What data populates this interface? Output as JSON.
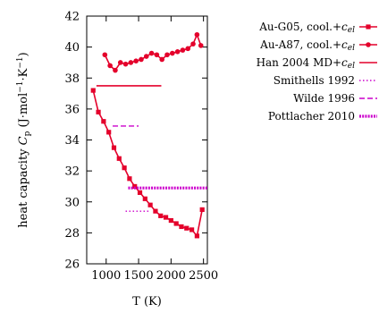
{
  "chart_data": {
    "type": "line",
    "xlabel": "T (K)",
    "ylabel": "heat capacity Cp (J·mol⁻¹·K⁻¹)",
    "ylabel_parts": {
      "prefix": "heat capacity ",
      "symbol": "C",
      "subscript": "p",
      "units_open": " (J·mol",
      "exp1": "−1",
      "units_mid": "·K",
      "exp2": "−1",
      "units_close": ")"
    },
    "xlim": [
      700,
      2560
    ],
    "ylim": [
      26,
      42
    ],
    "xticks": [
      1000,
      1500,
      2000,
      2500
    ],
    "xtick_labels": [
      "1000",
      "1500",
      "2000",
      "2500"
    ],
    "yticks": [
      26,
      28,
      30,
      32,
      34,
      36,
      38,
      40,
      42
    ],
    "ytick_labels": [
      "26",
      "28",
      "30",
      "32",
      "34",
      "36",
      "38",
      "40",
      "42"
    ],
    "legend_position": "outside-right",
    "series": [
      {
        "name": "Au-G05, cool.+c_el",
        "legend_label": {
          "text": "Au-G05, cool.+",
          "sym": "c",
          "sub": "el"
        },
        "color": "#e4002b",
        "style": "line-square",
        "x": [
          800,
          880,
          960,
          1040,
          1120,
          1200,
          1280,
          1360,
          1440,
          1520,
          1600,
          1680,
          1760,
          1840,
          1920,
          2000,
          2080,
          2160,
          2240,
          2320,
          2400,
          2480
        ],
        "y": [
          37.2,
          35.8,
          35.2,
          34.5,
          33.5,
          32.8,
          32.2,
          31.5,
          31.0,
          30.6,
          30.2,
          29.8,
          29.4,
          29.1,
          29.0,
          28.8,
          28.6,
          28.4,
          28.3,
          28.2,
          27.8,
          29.5
        ]
      },
      {
        "name": "Au-A87, cool.+c_el",
        "legend_label": {
          "text": "Au-A87, cool.+",
          "sym": "c",
          "sub": "el"
        },
        "color": "#e4002b",
        "style": "line-circle",
        "x": [
          980,
          1060,
          1140,
          1220,
          1300,
          1380,
          1460,
          1540,
          1620,
          1700,
          1780,
          1860,
          1940,
          2020,
          2100,
          2180,
          2260,
          2340,
          2400,
          2460
        ],
        "y": [
          39.5,
          38.8,
          38.5,
          39.0,
          38.9,
          39.0,
          39.1,
          39.2,
          39.4,
          39.6,
          39.5,
          39.2,
          39.5,
          39.6,
          39.7,
          39.8,
          39.9,
          40.2,
          40.8,
          40.1
        ]
      },
      {
        "name": "Han 2004 MD+c_el",
        "legend_label": {
          "text": "Han 2004 MD+",
          "sym": "c",
          "sub": "el"
        },
        "color": "#e4002b",
        "style": "solid",
        "x": [
          850,
          1850
        ],
        "y": [
          37.5,
          37.5
        ]
      },
      {
        "name": "Smithells 1992",
        "legend_label": {
          "text": "Smithells 1992"
        },
        "color": "#cc00cc",
        "style": "dotted",
        "x": [
          1300,
          1670
        ],
        "y": [
          29.4,
          29.4
        ]
      },
      {
        "name": "Wilde 1996",
        "legend_label": {
          "text": "Wilde 1996"
        },
        "color": "#cc00cc",
        "style": "dashed",
        "x": [
          1100,
          1500
        ],
        "y": [
          34.9,
          34.9
        ]
      },
      {
        "name": "Pottlacher 2010",
        "legend_label": {
          "text": "Pottlacher 2010"
        },
        "color": "#cc00cc",
        "style": "dense-dotted",
        "x": [
          1340,
          2560
        ],
        "y": [
          30.9,
          30.9
        ]
      }
    ]
  }
}
